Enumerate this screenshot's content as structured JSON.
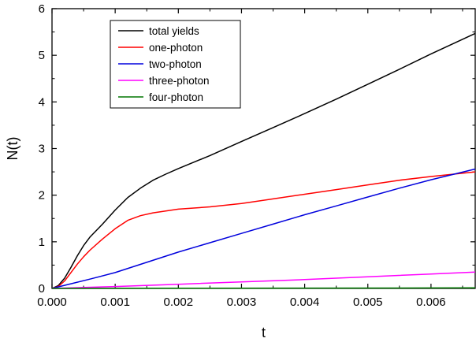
{
  "chart_data": {
    "type": "line",
    "title": "",
    "xlabel": "t",
    "ylabel": "N(t)",
    "xlim": [
      0,
      0.0067
    ],
    "ylim": [
      0,
      6
    ],
    "xticks": [
      0.0,
      0.001,
      0.002,
      0.003,
      0.004,
      0.005,
      0.006
    ],
    "xtick_labels": [
      "0.000",
      "0.001",
      "0.002",
      "0.003",
      "0.004",
      "0.005",
      "0.006"
    ],
    "yticks": [
      0,
      1,
      2,
      3,
      4,
      5,
      6
    ],
    "ytick_labels": [
      "0",
      "1",
      "2",
      "3",
      "4",
      "5",
      "6"
    ],
    "grid": false,
    "legend_position": "top-left",
    "series": [
      {
        "name": "total yields",
        "color": "#000000",
        "x": [
          0,
          0.0001,
          0.0002,
          0.0003,
          0.0004,
          0.0005,
          0.0006,
          0.0008,
          0.001,
          0.0012,
          0.0014,
          0.0016,
          0.0018,
          0.002,
          0.0025,
          0.003,
          0.0035,
          0.004,
          0.0045,
          0.005,
          0.0055,
          0.006,
          0.0067
        ],
        "y": [
          0,
          0.06,
          0.22,
          0.45,
          0.7,
          0.92,
          1.1,
          1.38,
          1.68,
          1.95,
          2.15,
          2.32,
          2.45,
          2.57,
          2.85,
          3.15,
          3.45,
          3.75,
          4.06,
          4.38,
          4.7,
          5.03,
          5.47
        ]
      },
      {
        "name": "one-photon",
        "color": "#ff0000",
        "x": [
          0,
          0.0001,
          0.0002,
          0.0003,
          0.0004,
          0.0005,
          0.0006,
          0.0008,
          0.001,
          0.0012,
          0.0014,
          0.0016,
          0.0018,
          0.002,
          0.0025,
          0.003,
          0.0035,
          0.004,
          0.0045,
          0.005,
          0.0055,
          0.006,
          0.0067
        ],
        "y": [
          0,
          0.04,
          0.16,
          0.34,
          0.52,
          0.68,
          0.82,
          1.06,
          1.28,
          1.46,
          1.56,
          1.62,
          1.66,
          1.7,
          1.75,
          1.82,
          1.92,
          2.02,
          2.12,
          2.22,
          2.32,
          2.4,
          2.5
        ]
      },
      {
        "name": "two-photon",
        "color": "#0000dd",
        "x": [
          0,
          0.0003,
          0.0006,
          0.001,
          0.0015,
          0.002,
          0.0025,
          0.003,
          0.0035,
          0.004,
          0.0045,
          0.005,
          0.0055,
          0.006,
          0.0067
        ],
        "y": [
          0,
          0.1,
          0.2,
          0.34,
          0.56,
          0.78,
          0.98,
          1.18,
          1.38,
          1.58,
          1.77,
          1.96,
          2.15,
          2.33,
          2.56
        ]
      },
      {
        "name": "three-photon",
        "color": "#ff00ff",
        "x": [
          0,
          0.001,
          0.002,
          0.003,
          0.004,
          0.005,
          0.006,
          0.0067
        ],
        "y": [
          0,
          0.04,
          0.09,
          0.14,
          0.19,
          0.25,
          0.31,
          0.35
        ]
      },
      {
        "name": "four-photon",
        "color": "#007700",
        "x": [
          0,
          0.002,
          0.004,
          0.006,
          0.0067
        ],
        "y": [
          0,
          0.003,
          0.006,
          0.01,
          0.012
        ]
      }
    ]
  }
}
